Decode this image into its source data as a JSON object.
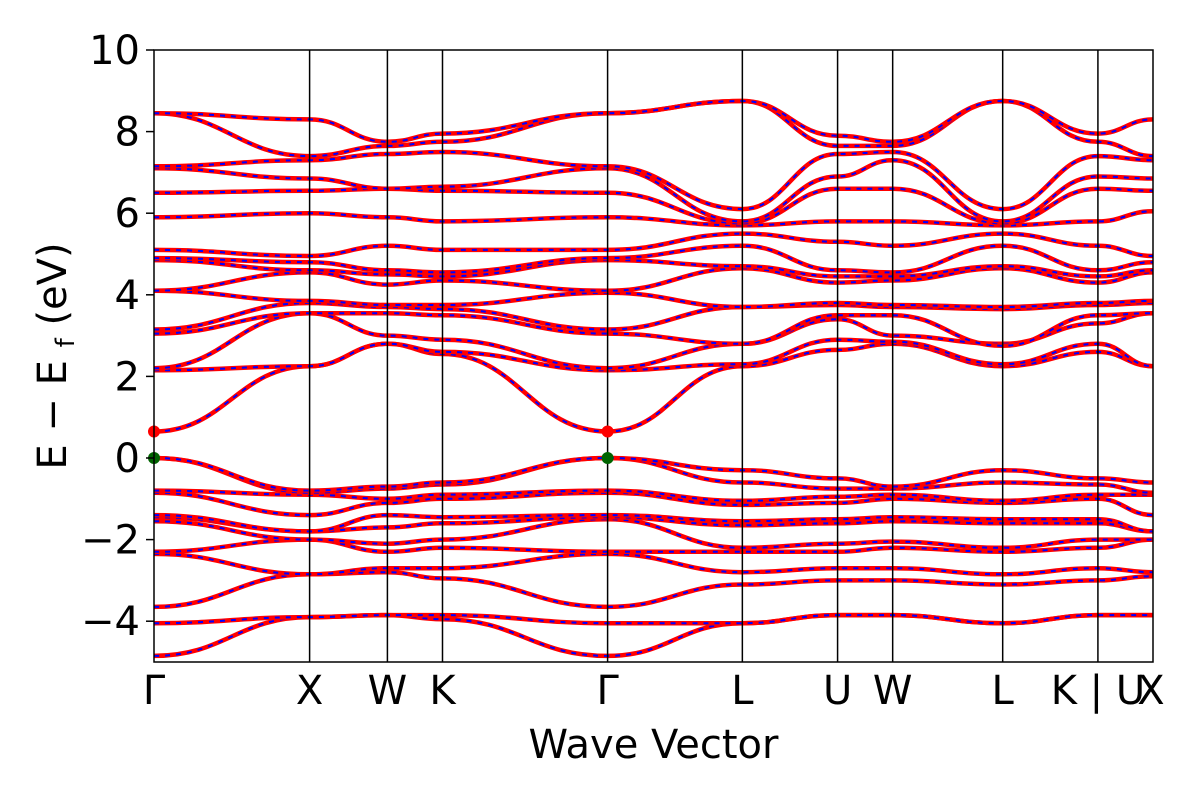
{
  "chart_data": {
    "type": "line",
    "xlabel": "Wave Vector",
    "ylabel_main": "E − E",
    "ylabel_sub": "f",
    "ylabel_unit": " (eV)",
    "ylim": [
      -5,
      10
    ],
    "yticks": [
      -4,
      -2,
      0,
      2,
      4,
      6,
      8,
      10
    ],
    "ytick_labels": [
      "−4",
      "−2",
      "0",
      "2",
      "4",
      "6",
      "8",
      "10"
    ],
    "kpath": [
      {
        "label": "Γ",
        "k": 0.0
      },
      {
        "label": "X",
        "k": 1.0
      },
      {
        "label": "W",
        "k": 1.5
      },
      {
        "label": "K",
        "k": 1.854
      },
      {
        "label": "Γ",
        "k": 2.915
      },
      {
        "label": "L",
        "k": 3.781
      },
      {
        "label": "U",
        "k": 4.393
      },
      {
        "label": "W",
        "k": 4.747
      },
      {
        "label": "L",
        "k": 5.454
      },
      {
        "label": "K | U",
        "k": 6.066
      },
      {
        "label": "X",
        "k": 6.42
      }
    ],
    "series": [
      {
        "name": "",
        "color": "#ff0000",
        "style": "solid"
      },
      {
        "name": "",
        "color": "#0000ff",
        "style": "dashed"
      }
    ],
    "colors": {
      "band_solid": "#ff0000",
      "band_dashed": "#0000ff",
      "cbm_marker": "#ff0000",
      "vbm_marker": "#006400"
    },
    "markers": [
      {
        "kind": "cbm",
        "k": 0.0,
        "energy": 0.65
      },
      {
        "kind": "cbm",
        "k": 2.915,
        "energy": 0.65
      },
      {
        "kind": "vbm",
        "k": 0.0,
        "energy": 0.0
      },
      {
        "kind": "vbm",
        "k": 2.915,
        "energy": 0.0
      }
    ],
    "bands": [
      [
        -4.85,
        -3.9,
        -3.85,
        -3.95,
        -4.85,
        -4.05,
        -3.85,
        -3.85,
        -4.05,
        -3.85,
        -3.85
      ],
      [
        -4.05,
        -3.9,
        -3.85,
        -3.85,
        -4.05,
        -4.05,
        -3.85,
        -3.85,
        -4.05,
        -3.85,
        -3.85
      ],
      [
        -3.65,
        -2.85,
        -2.8,
        -2.95,
        -3.65,
        -3.1,
        -3.0,
        -3.0,
        -3.1,
        -3.0,
        -2.9
      ],
      [
        -2.35,
        -2.85,
        -2.7,
        -2.7,
        -2.35,
        -2.8,
        -2.7,
        -2.7,
        -2.85,
        -2.7,
        -2.8
      ],
      [
        -2.3,
        -2.0,
        -2.3,
        -2.2,
        -2.3,
        -2.3,
        -2.3,
        -2.2,
        -2.3,
        -2.2,
        -2.0
      ],
      [
        -1.55,
        -2.0,
        -2.1,
        -2.0,
        -1.5,
        -2.2,
        -2.1,
        -2.05,
        -2.2,
        -2.0,
        -2.0
      ],
      [
        -1.45,
        -1.8,
        -1.7,
        -1.6,
        -1.45,
        -1.65,
        -1.6,
        -1.55,
        -1.6,
        -1.6,
        -1.8
      ],
      [
        -1.4,
        -1.8,
        -1.4,
        -1.45,
        -1.4,
        -1.55,
        -1.5,
        -1.45,
        -1.5,
        -1.5,
        -1.8
      ],
      [
        -0.85,
        -1.4,
        -1.1,
        -1.0,
        -0.85,
        -1.15,
        -1.1,
        -1.0,
        -1.1,
        -1.0,
        -1.4
      ],
      [
        -0.8,
        -0.9,
        -1.0,
        -0.9,
        -0.8,
        -1.05,
        -0.95,
        -0.9,
        -1.05,
        -0.9,
        -0.9
      ],
      [
        0.0,
        -0.85,
        -0.75,
        -0.65,
        0.0,
        -0.6,
        -0.75,
        -0.75,
        -0.6,
        -0.65,
        -0.85
      ],
      [
        0.0,
        -0.8,
        -0.7,
        -0.6,
        0.0,
        -0.3,
        -0.5,
        -0.7,
        -0.3,
        -0.5,
        -0.6
      ],
      [
        0.65,
        2.25,
        2.8,
        2.55,
        0.65,
        2.25,
        2.65,
        2.8,
        2.25,
        2.6,
        2.25
      ],
      [
        2.15,
        2.25,
        2.8,
        2.6,
        2.15,
        2.3,
        2.9,
        2.85,
        2.3,
        2.8,
        2.25
      ],
      [
        2.2,
        3.55,
        3.0,
        2.9,
        2.2,
        2.8,
        3.4,
        3.0,
        2.8,
        3.3,
        3.55
      ],
      [
        3.05,
        3.55,
        3.55,
        3.5,
        3.05,
        2.8,
        3.5,
        3.5,
        2.75,
        3.5,
        3.55
      ],
      [
        3.15,
        3.8,
        3.7,
        3.65,
        3.15,
        3.7,
        3.75,
        3.7,
        3.65,
        3.75,
        3.8
      ],
      [
        4.1,
        3.85,
        3.75,
        3.75,
        4.05,
        3.7,
        3.8,
        3.75,
        3.7,
        3.8,
        3.85
      ],
      [
        4.1,
        4.55,
        4.25,
        4.35,
        4.1,
        4.65,
        4.3,
        4.35,
        4.65,
        4.3,
        4.55
      ],
      [
        4.85,
        4.6,
        4.5,
        4.45,
        4.85,
        4.7,
        4.45,
        4.45,
        4.7,
        4.45,
        4.6
      ],
      [
        4.9,
        4.8,
        4.6,
        4.55,
        4.9,
        5.2,
        4.6,
        4.55,
        5.2,
        4.6,
        4.8
      ],
      [
        5.1,
        4.95,
        5.2,
        5.1,
        5.1,
        5.5,
        5.3,
        5.2,
        5.5,
        5.2,
        4.95
      ],
      [
        5.9,
        6.0,
        5.9,
        5.8,
        5.9,
        5.7,
        5.8,
        5.8,
        5.7,
        5.8,
        6.05
      ],
      [
        6.5,
        6.55,
        6.6,
        6.55,
        6.5,
        5.75,
        6.6,
        6.6,
        5.75,
        6.6,
        6.55
      ],
      [
        7.1,
        6.85,
        6.6,
        6.65,
        7.1,
        5.8,
        6.9,
        7.3,
        5.8,
        6.9,
        6.85
      ],
      [
        7.15,
        7.3,
        7.45,
        7.5,
        7.15,
        6.1,
        7.45,
        7.5,
        6.1,
        7.4,
        7.3
      ],
      [
        8.45,
        7.4,
        7.65,
        7.75,
        8.45,
        8.75,
        7.65,
        7.65,
        8.75,
        7.75,
        7.4
      ],
      [
        8.45,
        8.3,
        7.75,
        7.95,
        8.45,
        8.75,
        7.9,
        7.75,
        8.75,
        7.95,
        8.3
      ]
    ]
  }
}
